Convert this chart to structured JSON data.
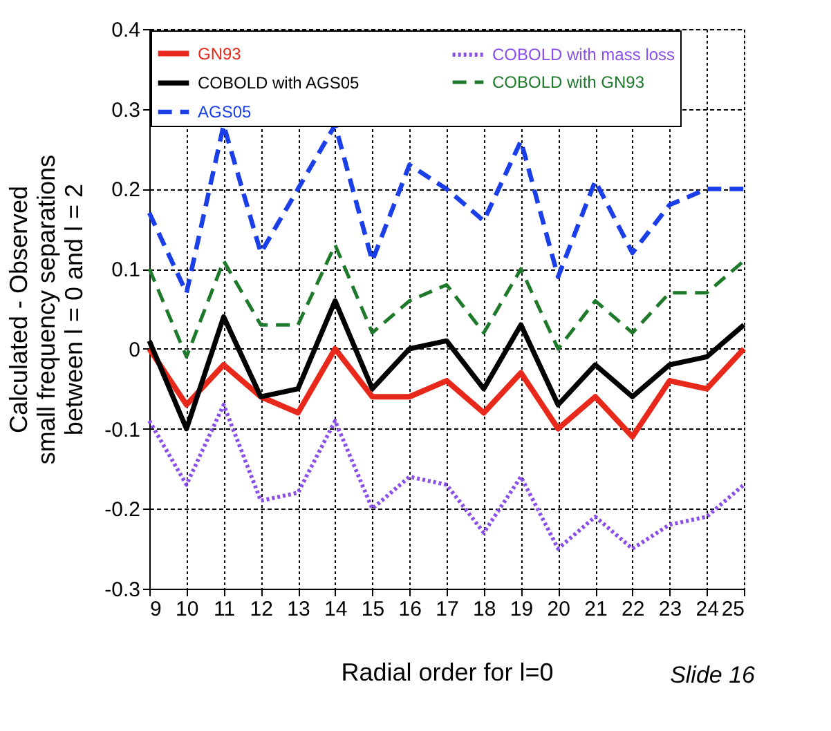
{
  "chart_data": {
    "type": "line",
    "xlabel": "Radial order for l=0",
    "ylabel": [
      "Calculated - Observed",
      "small frequency separations",
      "between l = 0 and l = 2"
    ],
    "x": [
      9,
      10,
      11,
      12,
      13,
      14,
      15,
      16,
      17,
      18,
      19,
      20,
      21,
      22,
      23,
      24,
      25
    ],
    "xlim": [
      9,
      25
    ],
    "xticks": [
      9,
      10,
      11,
      12,
      13,
      14,
      15,
      16,
      17,
      18,
      19,
      20,
      21,
      22,
      23,
      24,
      25
    ],
    "ylim": [
      -0.3,
      0.4
    ],
    "yticks": [
      -0.3,
      -0.2,
      -0.1,
      {
        "value": 0,
        "label": "0"
      },
      0.1,
      0.2,
      0.3,
      0.4
    ],
    "grid": true,
    "legend": "top",
    "marker": "none",
    "annotations": [
      "Slide 16"
    ],
    "series": [
      {
        "name": "GN93",
        "color": "#e8281a",
        "line_style": "solid",
        "values": [
          0,
          -0.07,
          -0.02,
          -0.06,
          -0.08,
          0,
          -0.06,
          -0.06,
          -0.04,
          -0.08,
          -0.03,
          -0.1,
          -0.06,
          -0.11,
          -0.04,
          -0.05,
          0
        ]
      },
      {
        "name": "COBOLD with AGS05",
        "color": "#000000",
        "line_style": "solid",
        "values": [
          0.01,
          -0.1,
          0.04,
          -0.06,
          -0.05,
          0.06,
          -0.05,
          0,
          0.01,
          -0.05,
          0.03,
          -0.07,
          -0.02,
          -0.06,
          -0.02,
          -0.01,
          0.03
        ]
      },
      {
        "name": "AGS05",
        "color": "#1a3fe8",
        "line_style": "dashed",
        "values": [
          0.17,
          0.07,
          0.28,
          0.12,
          0.2,
          0.28,
          0.11,
          0.23,
          0.2,
          0.16,
          0.26,
          0.09,
          0.21,
          0.12,
          0.18,
          0.2,
          0.2
        ]
      },
      {
        "name": "COBOLD with mass loss",
        "color": "#8a4fe8",
        "line_style": "dotted",
        "values": [
          -0.09,
          -0.17,
          -0.07,
          -0.19,
          -0.18,
          -0.09,
          -0.2,
          -0.16,
          -0.17,
          -0.23,
          -0.16,
          -0.25,
          -0.21,
          -0.25,
          -0.22,
          -0.21,
          -0.17
        ]
      },
      {
        "name": "COBOLD with GN93",
        "color": "#1e7a2a",
        "line_style": "dashed",
        "values": [
          0.1,
          -0.01,
          0.11,
          0.03,
          0.03,
          0.13,
          0.02,
          0.06,
          0.08,
          0.02,
          0.1,
          0,
          0.06,
          0.02,
          0.07,
          0.07,
          0.11
        ]
      }
    ]
  }
}
